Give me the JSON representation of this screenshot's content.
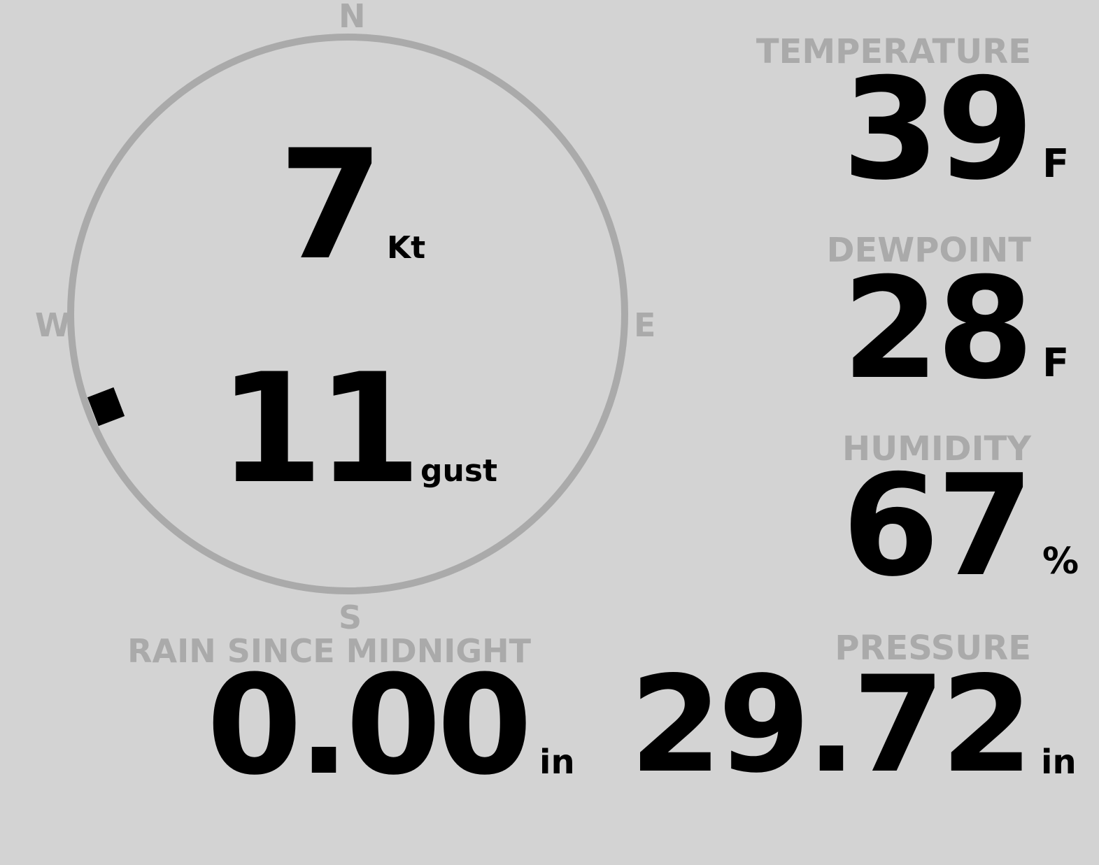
{
  "colors": {
    "background": "#d3d3d3",
    "label": "#aaaaaa",
    "value": "#000000",
    "dial": "#aaaaaa",
    "marker": "#000000"
  },
  "wind": {
    "compass": {
      "n": "N",
      "e": "E",
      "s": "S",
      "w": "W"
    },
    "speed": "7",
    "speed_unit": "Kt",
    "gust": "11",
    "gust_unit": "gust",
    "direction_deg": 249
  },
  "temperature": {
    "label": "TEMPERATURE",
    "value": "39",
    "unit": "F"
  },
  "dewpoint": {
    "label": "DEWPOINT",
    "value": "28",
    "unit": "F"
  },
  "humidity": {
    "label": "HUMIDITY",
    "value": "67",
    "unit": "%"
  },
  "pressure": {
    "label": "PRESSURE",
    "value": "29.72",
    "unit": "in"
  },
  "rain": {
    "label": "RAIN SINCE MIDNIGHT",
    "value": "0.00",
    "unit": "in"
  }
}
